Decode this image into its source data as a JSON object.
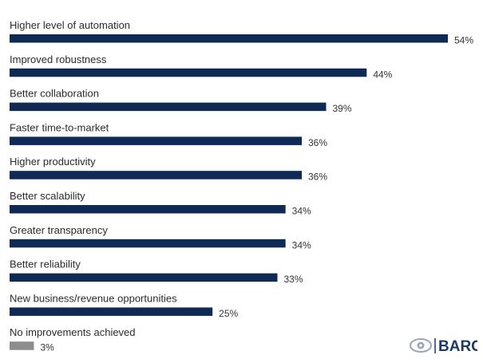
{
  "chart_data": {
    "type": "bar",
    "orientation": "horizontal",
    "categories": [
      "Higher level of automation",
      "Improved robustness",
      "Better collaboration",
      "Faster time-to-market",
      "Higher productivity",
      "Better scalability",
      "Greater transparency",
      "Better reliability",
      "New business/revenue opportunities",
      "No improvements achieved"
    ],
    "values": [
      54,
      44,
      39,
      36,
      36,
      34,
      34,
      33,
      25,
      3
    ],
    "value_labels": [
      "54%",
      "44%",
      "39%",
      "36%",
      "36%",
      "34%",
      "34%",
      "33%",
      "25%",
      "3%"
    ],
    "bar_color": "#0f2a55",
    "highlight_last_color": "#8c8c8c",
    "xlim": [
      0,
      54
    ],
    "grid": false,
    "legend": "none"
  },
  "branding": {
    "logo_text": "BARC",
    "logo_color": "#1e3a66",
    "eye_icon": "eye-icon"
  }
}
